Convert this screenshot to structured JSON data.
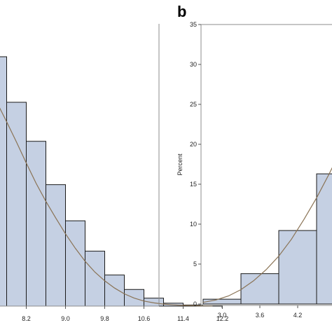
{
  "colors": {
    "bar_fill": "#c5d0e3",
    "bar_stroke": "#1a1a1a",
    "curve": "#8a7355",
    "frame": "#8c8c8c"
  },
  "panel_letter": "b",
  "chart_data": [
    {
      "type": "bar",
      "panel": "a",
      "title": "",
      "xlabel": "",
      "ylabel": "",
      "x_tick_labels": [
        "8.2",
        "9.0",
        "9.8",
        "10.6",
        "11.4",
        "12.2"
      ],
      "bin_width": 0.4,
      "bins": [
        {
          "x_start": 7.4,
          "value": 34.5
        },
        {
          "x_start": 7.8,
          "value": 28.2
        },
        {
          "x_start": 8.2,
          "value": 22.8
        },
        {
          "x_start": 8.6,
          "value": 16.8
        },
        {
          "x_start": 9.0,
          "value": 11.8
        },
        {
          "x_start": 9.4,
          "value": 7.6
        },
        {
          "x_start": 9.8,
          "value": 4.3
        },
        {
          "x_start": 10.2,
          "value": 2.3
        },
        {
          "x_start": 10.6,
          "value": 1.1
        },
        {
          "x_start": 11.0,
          "value": 0.4
        },
        {
          "x_start": 11.4,
          "value": 0.15
        },
        {
          "x_start": 11.8,
          "value": 0.05
        }
      ],
      "curve": {
        "x": [
          7.4,
          7.6,
          7.8,
          8.0,
          8.2,
          8.4,
          8.6,
          8.8,
          9.0,
          9.2,
          9.4,
          9.6,
          9.8,
          10.0,
          10.2,
          10.4,
          10.6,
          10.8,
          11.0,
          11.2,
          11.4,
          11.6,
          11.8,
          12.0
        ],
        "y": [
          31.0,
          28.2,
          25.5,
          22.7,
          19.8,
          17.0,
          14.5,
          12.2,
          10.0,
          8.0,
          6.2,
          4.7,
          3.5,
          2.5,
          1.7,
          1.1,
          0.7,
          0.45,
          0.28,
          0.17,
          0.1,
          0.06,
          0.03,
          0.02
        ]
      }
    },
    {
      "type": "bar",
      "panel": "b",
      "title": "",
      "xlabel": "",
      "ylabel": "Percent",
      "ylim": [
        0,
        35
      ],
      "y_ticks": [
        0,
        5,
        10,
        15,
        20,
        25,
        30,
        35
      ],
      "x_tick_labels": [
        "3.0",
        "3.6",
        "4.2"
      ],
      "bin_width": 0.6,
      "bins": [
        {
          "x_start": 2.7,
          "value": 0.6
        },
        {
          "x_start": 3.3,
          "value": 3.8
        },
        {
          "x_start": 3.9,
          "value": 9.2
        },
        {
          "x_start": 4.5,
          "value": 16.3
        }
      ],
      "curve": {
        "x": [
          2.7,
          2.9,
          3.1,
          3.3,
          3.5,
          3.7,
          3.9,
          4.1,
          4.3,
          4.5,
          4.7,
          4.8
        ],
        "y": [
          0.2,
          0.5,
          1.0,
          1.8,
          2.9,
          4.3,
          6.0,
          8.1,
          10.6,
          13.3,
          16.3,
          17.9
        ]
      }
    }
  ]
}
